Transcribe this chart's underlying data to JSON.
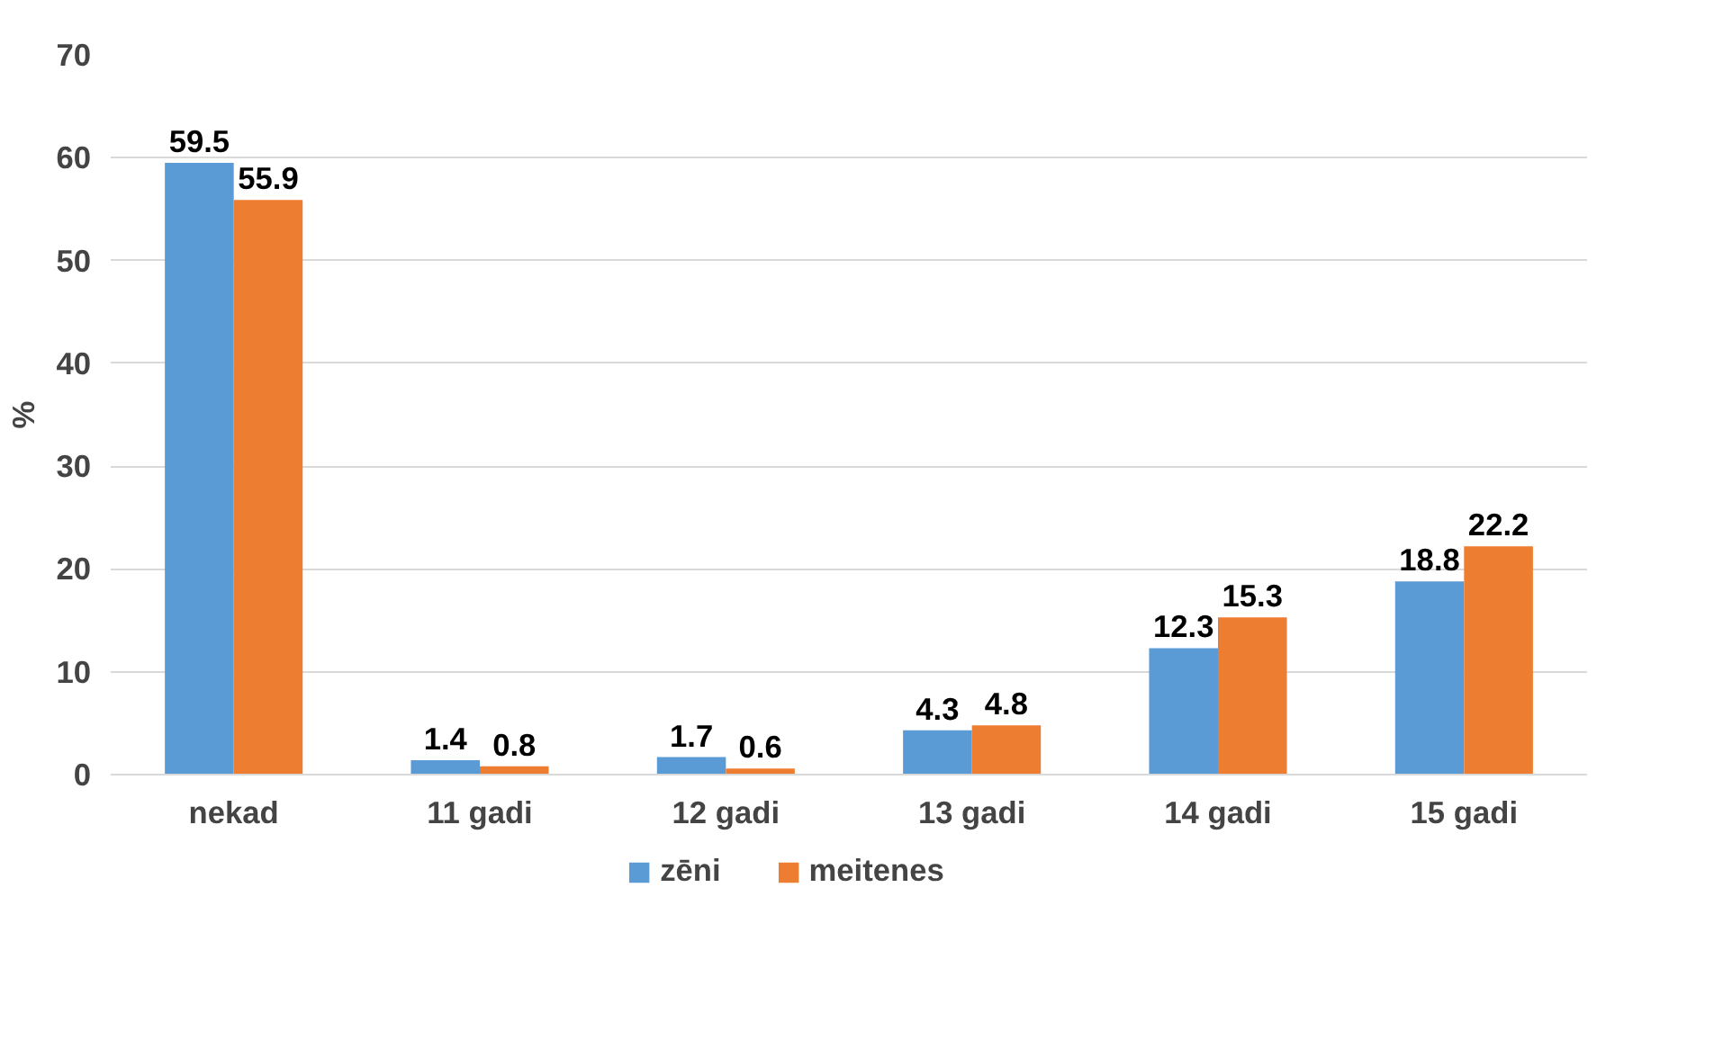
{
  "chart_data": {
    "type": "bar",
    "categories": [
      "nekad",
      "11 gadi",
      "12 gadi",
      "13 gadi",
      "14 gadi",
      "15 gadi"
    ],
    "ylabel": "%",
    "ylim": [
      0,
      70
    ],
    "yticks": [
      0,
      10,
      20,
      30,
      40,
      50,
      60,
      70
    ],
    "grid": "y",
    "legend": "bottom",
    "data_labels": true,
    "series": [
      {
        "name": "zēni",
        "color": "#5b9bd5",
        "values": [
          59.5,
          1.4,
          1.7,
          4.3,
          12.3,
          18.8
        ]
      },
      {
        "name": "meitenes",
        "color": "#ed7d31",
        "values": [
          55.9,
          0.8,
          0.6,
          4.8,
          15.3,
          22.2
        ]
      }
    ]
  }
}
